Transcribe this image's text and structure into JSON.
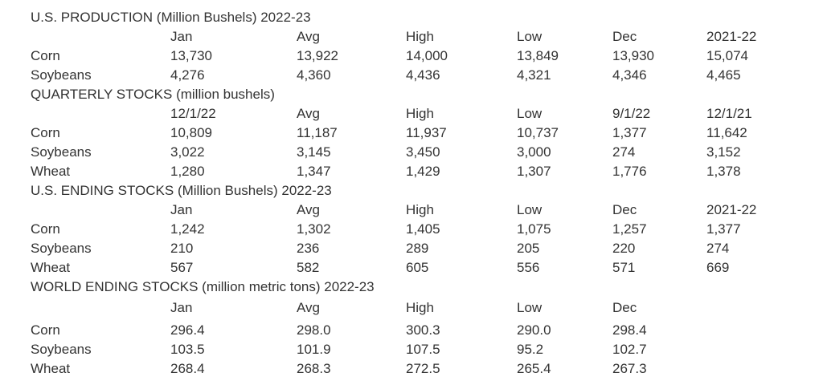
{
  "sections": [
    {
      "id": "production",
      "title": "U.S. PRODUCTION (Million Bushels) 2022-23",
      "columns": [
        "Jan",
        "Avg",
        "High",
        "Low",
        "Dec",
        "2021-22"
      ],
      "rows": [
        {
          "label": "Corn",
          "values": [
            "13,730",
            "13,922",
            "14,000",
            "13,849",
            "13,930",
            "15,074"
          ]
        },
        {
          "label": "Soybeans",
          "values": [
            "4,276",
            "4,360",
            "4,436",
            "4,321",
            "4,346",
            "4,465"
          ]
        }
      ]
    },
    {
      "id": "quarterly",
      "title": "QUARTERLY STOCKS (million bushels)",
      "columns": [
        "12/1/22",
        "Avg",
        "High",
        "Low",
        "9/1/22",
        "12/1/21"
      ],
      "rows": [
        {
          "label": "Corn",
          "values": [
            "10,809",
            "11,187",
            "11,937",
            "10,737",
            "1,377",
            "11,642"
          ]
        },
        {
          "label": "Soybeans",
          "values": [
            "3,022",
            "3,145",
            "3,450",
            "3,000",
            "274",
            "3,152"
          ]
        },
        {
          "label": "Wheat",
          "values": [
            "1,280",
            "1,347",
            "1,429",
            "1,307",
            "1,776",
            "1,378"
          ]
        }
      ]
    },
    {
      "id": "ending",
      "title": "U.S. ENDING STOCKS (Million Bushels) 2022-23",
      "columns": [
        "Jan",
        "Avg",
        "High",
        "Low",
        "Dec",
        "2021-22"
      ],
      "rows": [
        {
          "label": "Corn",
          "values": [
            "1,242",
            "1,302",
            "1,405",
            "1,075",
            "1,257",
            "1,377"
          ]
        },
        {
          "label": "Soybeans",
          "values": [
            "210",
            "236",
            "289",
            "205",
            "220",
            "274"
          ]
        },
        {
          "label": "Wheat",
          "values": [
            "567",
            "582",
            "605",
            "556",
            "571",
            "669"
          ]
        }
      ]
    },
    {
      "id": "world",
      "title": "WORLD ENDING STOCKS (million metric tons) 2022-23",
      "columns": [
        "Jan",
        "Avg",
        "High",
        "Low",
        "Dec"
      ],
      "rows": [
        {
          "label": "Corn",
          "values": [
            "296.4",
            "298.0",
            "300.3",
            "290.0",
            "298.4"
          ]
        },
        {
          "label": "Soybeans",
          "values": [
            "103.5",
            "101.9",
            "107.5",
            "95.2",
            "102.7"
          ]
        },
        {
          "label": "Wheat",
          "values": [
            "268.4",
            "268.3",
            "272.5",
            "265.4",
            "267.3"
          ]
        }
      ]
    }
  ]
}
